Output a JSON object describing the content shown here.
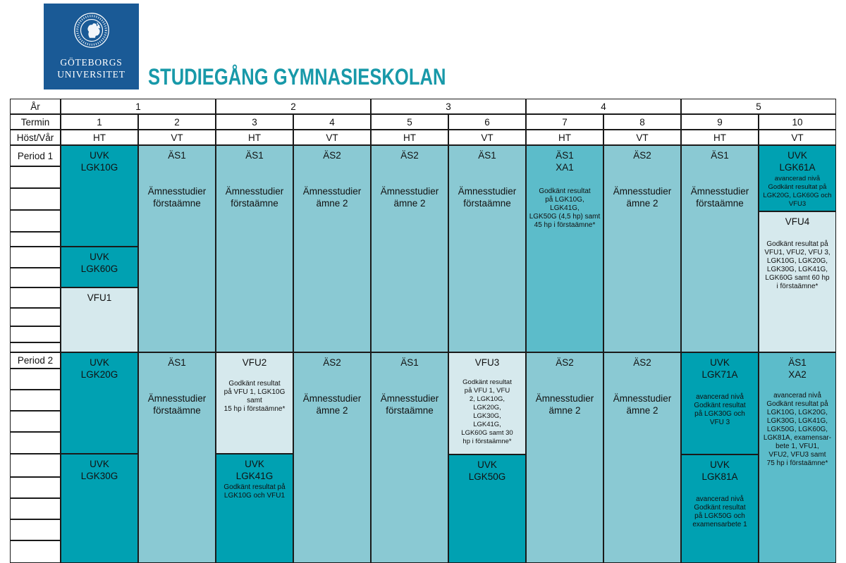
{
  "logo": {
    "line1": "GÖTEBORGS",
    "line2": "UNIVERSITET"
  },
  "title": "STUDIEGÅNG GYMNASIESKOLAN",
  "palette": {
    "logo_blue": "#1a5a96",
    "title_teal": "#1899a9",
    "dark": "#00a1b2",
    "medium": "#8ac9d3",
    "strong": "#5cbcca",
    "light": "#d6e9ed",
    "border": "#1a1a1a"
  },
  "table": {
    "row_labels": {
      "year": "År",
      "term": "Termin",
      "season": "Höst/Vår",
      "period1": "Period 1",
      "period2": "Period 2"
    },
    "years": [
      "1",
      "2",
      "3",
      "4",
      "5"
    ],
    "terms": [
      "1",
      "2",
      "3",
      "4",
      "5",
      "6",
      "7",
      "8",
      "9",
      "10"
    ],
    "seasons": [
      "HT",
      "VT",
      "HT",
      "VT",
      "HT",
      "VT",
      "HT",
      "VT",
      "HT",
      "VT"
    ],
    "cells": [
      {
        "id": "uvk-lgk10g",
        "variant": "dark",
        "title": [
          "UVK",
          "LGK10G"
        ]
      },
      {
        "id": "uvk-lgk60g",
        "variant": "dark",
        "title": [
          "UVK",
          "LGK60G"
        ]
      },
      {
        "id": "vfu1",
        "variant": "light",
        "title": [
          "VFU1"
        ]
      },
      {
        "id": "as1-p1t2",
        "variant": "medium",
        "title": [
          "ÄS1"
        ],
        "body": [
          "Ämnesstudier",
          "förstaämne"
        ]
      },
      {
        "id": "as1-p1t3",
        "variant": "medium",
        "title": [
          "ÄS1"
        ],
        "body": [
          "Ämnesstudier",
          "förstaämne"
        ]
      },
      {
        "id": "as2-p1t4",
        "variant": "medium",
        "title": [
          "ÄS2"
        ],
        "body": [
          "Ämnesstudier",
          "ämne 2"
        ]
      },
      {
        "id": "as2-p1t5",
        "variant": "medium",
        "title": [
          "ÄS2"
        ],
        "body": [
          "Ämnesstudier",
          "ämne 2"
        ]
      },
      {
        "id": "as1-p1t6",
        "variant": "medium",
        "title": [
          "ÄS1"
        ],
        "body": [
          "Ämnesstudier",
          "förstaämne"
        ]
      },
      {
        "id": "as1-xa1",
        "variant": "strong",
        "title": [
          "ÄS1",
          "XA1"
        ],
        "note": [
          "Godkänt resultat",
          "på LGK10G,",
          "LGK41G,",
          "LGK50G (4,5 hp) samt",
          "45 hp i förstaämne*"
        ]
      },
      {
        "id": "as2-p1t8",
        "variant": "medium",
        "title": [
          "ÄS2"
        ],
        "body": [
          "Ämnesstudier",
          "ämne 2"
        ]
      },
      {
        "id": "as1-p1t9",
        "variant": "medium",
        "title": [
          "ÄS1"
        ],
        "body": [
          "Ämnesstudier",
          "förstaämne"
        ]
      },
      {
        "id": "uvk-lgk61a",
        "variant": "dark",
        "title": [
          "UVK",
          "LGK61A"
        ],
        "note": [
          "avancerad nivå",
          "Godkänt resultat på",
          "LGK20G, LGK60G och",
          "VFU3"
        ]
      },
      {
        "id": "vfu4",
        "variant": "light",
        "title": [
          "VFU4"
        ],
        "note": [
          "Godkänt resultat på",
          "VFU1, VFU2, VFU 3,",
          "LGK10G, LGK20G,",
          "LGK30G, LGK41G,",
          "LGK60G samt 60 hp",
          "i förstaämne*"
        ]
      },
      {
        "id": "uvk-lgk20g",
        "variant": "dark",
        "title": [
          "UVK",
          "LGK20G"
        ]
      },
      {
        "id": "uvk-lgk30g",
        "variant": "dark",
        "title": [
          "UVK",
          "LGK30G"
        ]
      },
      {
        "id": "as1-p2t2",
        "variant": "medium",
        "title": [
          "ÄS1"
        ],
        "body": [
          "Ämnesstudier",
          "förstaämne"
        ]
      },
      {
        "id": "vfu2",
        "variant": "light",
        "title": [
          "VFU2"
        ],
        "note": [
          "Godkänt resultat",
          "på VFU 1, LGK10G samt",
          "15 hp i förstaämne*"
        ]
      },
      {
        "id": "uvk-lgk41g",
        "variant": "dark",
        "title": [
          "UVK",
          "LGK41G"
        ],
        "note": [
          "Godkänt resultat på",
          "LGK10G och VFU1"
        ]
      },
      {
        "id": "as2-p2t4",
        "variant": "medium",
        "title": [
          "ÄS2"
        ],
        "body": [
          "Ämnesstudier",
          "ämne 2"
        ]
      },
      {
        "id": "as1-p2t5",
        "variant": "medium",
        "title": [
          "ÄS1"
        ],
        "body": [
          "Ämnesstudier",
          "förstaämne"
        ]
      },
      {
        "id": "vfu3",
        "variant": "light",
        "title": [
          "VFU3"
        ],
        "note": [
          "Godkänt resultat",
          "på VFU 1, VFU",
          "2, LGK10G,",
          "LGK20G,",
          "LGK30G,",
          "LGK41G,",
          "LGK60G samt 30",
          "hp i förstaämne*"
        ]
      },
      {
        "id": "uvk-lgk50g",
        "variant": "dark",
        "title": [
          "UVK",
          "LGK50G"
        ]
      },
      {
        "id": "as2-p2t7",
        "variant": "medium",
        "title": [
          "ÄS2"
        ],
        "body": [
          "Ämnesstudier",
          "ämne 2"
        ]
      },
      {
        "id": "as2-p2t8",
        "variant": "medium",
        "title": [
          "ÄS2"
        ],
        "body": [
          "Ämnesstudier",
          "ämne 2"
        ]
      },
      {
        "id": "uvk-lgk71a",
        "variant": "dark",
        "title": [
          "UVK",
          "LGK71A"
        ],
        "note": [
          "avancerad nivå",
          "Godkänt resultat",
          "på LGK30G och",
          "VFU 3"
        ]
      },
      {
        "id": "uvk-lgk81a",
        "variant": "dark",
        "title": [
          "UVK",
          "LGK81A"
        ],
        "note": [
          "avancerad nivå",
          "Godkänt resultat",
          "på LGK50G och",
          "examensarbete 1"
        ]
      },
      {
        "id": "as1-xa2",
        "variant": "strong",
        "title": [
          "ÄS1",
          "XA2"
        ],
        "note": [
          "avancerad nivå",
          "Godkänt resultat på",
          "LGK10G, LGK20G,",
          "LGK30G, LGK41G,",
          "LGK50G, LGK60G,",
          "LGK81A, examensar-",
          "bete 1, VFU1,",
          "VFU2, VFU3 samt",
          "75 hp i förstaämne*"
        ]
      }
    ]
  }
}
